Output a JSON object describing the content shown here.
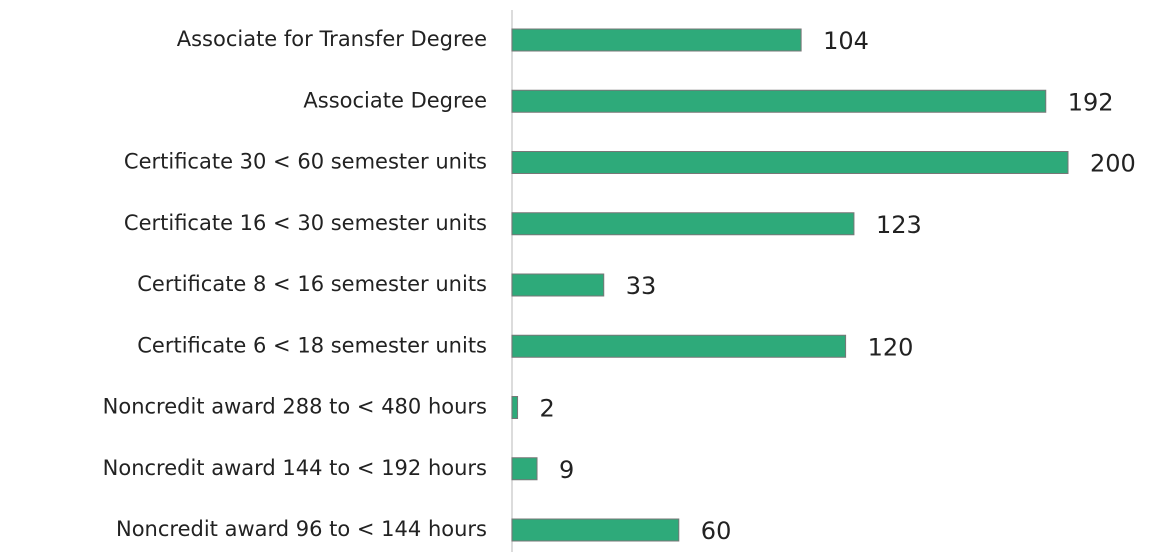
{
  "chart_data": {
    "type": "bar",
    "orientation": "horizontal",
    "categories": [
      "Associate for Transfer Degree",
      "Associate Degree",
      "Certificate 30 < 60 semester units",
      "Certificate 16 < 30 semester units",
      "Certificate 8 < 16 semester units",
      "Certificate 6 < 18 semester units",
      "Noncredit award 288 to < 480 hours",
      "Noncredit award 144 to < 192 hours",
      "Noncredit award 96 to < 144 hours"
    ],
    "values": [
      104,
      192,
      200,
      123,
      33,
      120,
      2,
      9,
      60
    ],
    "color": "#2eaa7a"
  }
}
